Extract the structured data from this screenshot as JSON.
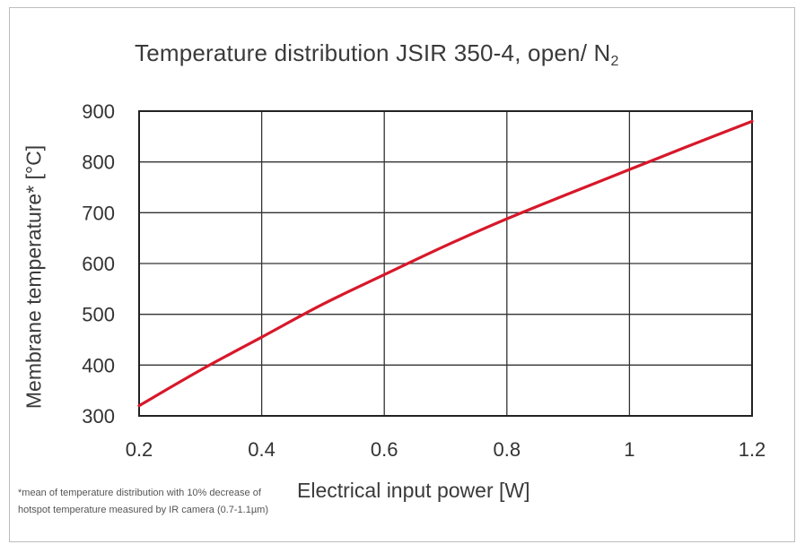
{
  "chart_data": {
    "type": "line",
    "title": "Temperature distribution JSIR 350-4, open/ N",
    "title_subscript": "2",
    "xlabel": "Electrical input power [W]",
    "ylabel": "Membrane temperature* [°C]",
    "xlim": [
      0.2,
      1.2
    ],
    "ylim": [
      300,
      900
    ],
    "x_ticks": [
      "0.2",
      "0.4",
      "0.6",
      "0.8",
      "1",
      "1.2"
    ],
    "y_ticks": [
      "300",
      "400",
      "500",
      "600",
      "700",
      "800",
      "900"
    ],
    "grid": true,
    "series": [
      {
        "color": "#d7182a",
        "x": [
          0.2,
          0.3,
          0.4,
          0.5,
          0.6,
          0.7,
          0.8,
          0.9,
          1.0,
          1.1,
          1.2
        ],
        "y": [
          320,
          390,
          455,
          520,
          578,
          635,
          688,
          737,
          785,
          833,
          880
        ]
      }
    ],
    "footnote": [
      "*mean of temperature distribution with 10% decrease of",
      "hotspot temperature measured by IR camera (0.7-1.1µm)"
    ]
  }
}
